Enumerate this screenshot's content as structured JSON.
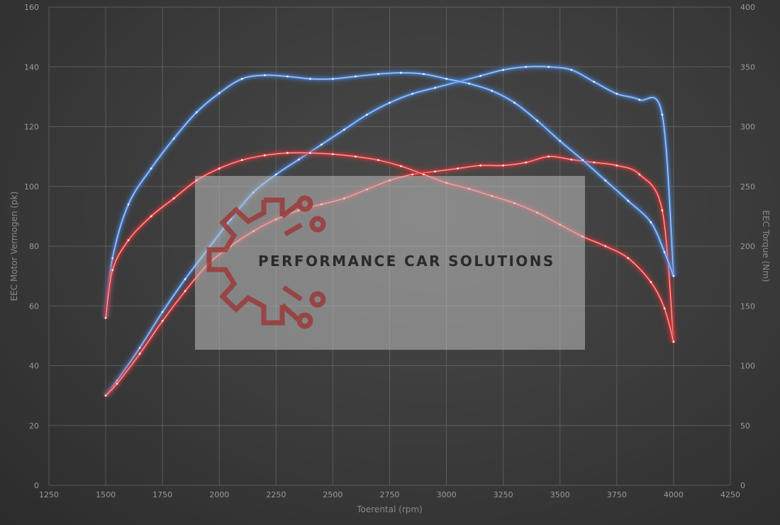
{
  "chart_data": {
    "type": "line",
    "xlabel": "Toerental (rpm)",
    "ylabel_left": "EEC Motor Vermogen (pk)",
    "ylabel_right": "EEC Torque (Nm)",
    "xlim": [
      1250,
      4250
    ],
    "ylim_left": [
      0,
      160
    ],
    "ylim_right": [
      0,
      400
    ],
    "x_ticks": [
      1250,
      1500,
      1750,
      2000,
      2250,
      2500,
      2750,
      3000,
      3250,
      3500,
      3750,
      4000,
      4250
    ],
    "y_ticks_left": [
      0,
      20,
      40,
      60,
      80,
      100,
      120,
      140,
      160
    ],
    "y_ticks_right": [
      0,
      50,
      100,
      150,
      200,
      250,
      300,
      350,
      400
    ],
    "grid": true,
    "series": [
      {
        "axis": "left",
        "color": "#4a86d8",
        "x": [
          1500,
          1550,
          1650,
          1750,
          1850,
          1950,
          2050,
          2150,
          2250,
          2350,
          2450,
          2550,
          2650,
          2750,
          2850,
          2950,
          3050,
          3150,
          3250,
          3350,
          3450,
          3550,
          3650,
          3750,
          3850,
          3950,
          4000
        ],
        "y": [
          30,
          35,
          46,
          58,
          69,
          79,
          89,
          98,
          104,
          109,
          114,
          119,
          124,
          128,
          131,
          133,
          135,
          137,
          139,
          140,
          140,
          139,
          135,
          131,
          129,
          124,
          70
        ]
      },
      {
        "axis": "left",
        "color": "#d83434",
        "x": [
          1500,
          1550,
          1650,
          1750,
          1850,
          1950,
          2050,
          2150,
          2250,
          2350,
          2450,
          2550,
          2650,
          2750,
          2850,
          2950,
          3050,
          3150,
          3250,
          3350,
          3450,
          3550,
          3650,
          3750,
          3850,
          3950,
          4000
        ],
        "y": [
          30,
          34,
          44,
          55,
          65,
          74,
          80,
          85,
          89,
          92,
          94,
          96,
          99,
          102,
          104,
          105,
          106,
          107,
          107,
          108,
          110,
          109,
          108,
          107,
          104,
          92,
          48
        ]
      },
      {
        "axis": "right",
        "color": "#4a86d8",
        "x": [
          1500,
          1530,
          1600,
          1700,
          1800,
          1900,
          2000,
          2100,
          2200,
          2300,
          2400,
          2500,
          2600,
          2700,
          2800,
          2900,
          3000,
          3100,
          3200,
          3300,
          3400,
          3500,
          3600,
          3700,
          3800,
          3900,
          3960,
          4000
        ],
        "y": [
          140,
          190,
          235,
          265,
          290,
          312,
          328,
          340,
          343,
          342,
          340,
          340,
          342,
          344,
          345,
          344,
          340,
          336,
          330,
          320,
          305,
          288,
          272,
          255,
          238,
          220,
          195,
          175
        ]
      },
      {
        "axis": "right",
        "color": "#d83434",
        "x": [
          1500,
          1530,
          1600,
          1700,
          1800,
          1900,
          2000,
          2100,
          2200,
          2300,
          2400,
          2500,
          2600,
          2700,
          2800,
          2900,
          3000,
          3100,
          3200,
          3300,
          3400,
          3500,
          3600,
          3700,
          3800,
          3900,
          3960,
          4000
        ],
        "y": [
          140,
          180,
          205,
          225,
          240,
          255,
          265,
          272,
          276,
          278,
          278,
          277,
          275,
          272,
          267,
          260,
          253,
          248,
          242,
          236,
          228,
          218,
          208,
          200,
          190,
          170,
          148,
          120
        ]
      }
    ],
    "watermark": "PERFORMANCE CAR SOLUTIONS"
  }
}
